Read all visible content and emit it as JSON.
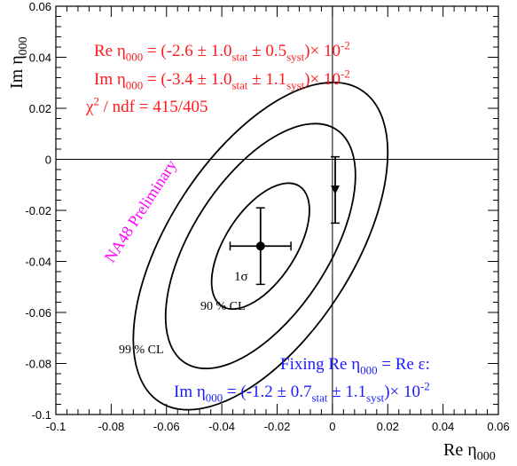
{
  "chart_data": {
    "type": "scatter",
    "xlim": [
      -0.1,
      0.06
    ],
    "ylim": [
      -0.1,
      0.06
    ],
    "x_ticks": [
      -0.1,
      -0.08,
      -0.06,
      -0.04,
      -0.02,
      0,
      0.02,
      0.04,
      0.06
    ],
    "y_ticks": [
      -0.1,
      -0.08,
      -0.06,
      -0.04,
      -0.02,
      0,
      0.02,
      0.04,
      0.06
    ],
    "x_tick_labels": [
      "-0.1",
      "-0.08",
      "-0.06",
      "-0.04",
      "-0.02",
      "0",
      "0.02",
      "0.04",
      "0.06"
    ],
    "y_tick_labels": [
      "-0.1",
      "-0.08",
      "-0.06",
      "-0.04",
      "-0.02",
      "0",
      "0.02",
      "0.04",
      "0.06"
    ],
    "xlabel": {
      "base": "Re  η",
      "sub": "000"
    },
    "ylabel": {
      "base": "Im  η",
      "sub": "000"
    },
    "grid": false,
    "zero_lines": {
      "x": 0,
      "y": 0
    },
    "central_value": {
      "x": -0.026,
      "y": -0.034,
      "xerr": 0.011,
      "yerr": 0.015
    },
    "fixed_point": {
      "x": 0.001,
      "y": -0.012,
      "err_low": 0.013,
      "err_high": 0.013
    },
    "contours": [
      {
        "label": "1σ",
        "cx": -0.026,
        "cy": -0.034,
        "rx": 0.0128,
        "ry": 0.028,
        "rotation_deg": -33
      },
      {
        "label": "90 % CL",
        "cx": -0.026,
        "cy": -0.034,
        "rx": 0.0247,
        "ry": 0.0545,
        "rotation_deg": -33
      },
      {
        "label": "99 % CL",
        "cx": -0.026,
        "cy": -0.034,
        "rx": 0.0333,
        "ry": 0.0728,
        "rotation_deg": -33
      }
    ],
    "annotations": {
      "result_re": {
        "color": "#ff1a1a",
        "parts": [
          {
            "t": "Re η"
          },
          {
            "t": "000",
            "s": "sub"
          },
          {
            "t": " = (-2.6 ± 1.0"
          },
          {
            "t": "stat",
            "s": "sub"
          },
          {
            "t": " ± 0.5"
          },
          {
            "t": "syst",
            "s": "sub"
          },
          {
            "t": ")× 10"
          },
          {
            "t": "-2",
            "s": "sup"
          }
        ]
      },
      "result_im": {
        "color": "#ff1a1a",
        "parts": [
          {
            "t": "Im η"
          },
          {
            "t": "000",
            "s": "sub"
          },
          {
            "t": " = (-3.4 ± 1.0"
          },
          {
            "t": "stat",
            "s": "sub"
          },
          {
            "t": " ± 1.1"
          },
          {
            "t": "syst",
            "s": "sub"
          },
          {
            "t": ")× 10"
          },
          {
            "t": "-2",
            "s": "sup"
          }
        ]
      },
      "chi2": {
        "color": "#ff1a1a",
        "parts": [
          {
            "t": "χ"
          },
          {
            "t": "2",
            "s": "sup"
          },
          {
            "t": " / ndf = 415/405"
          }
        ]
      },
      "preliminary": {
        "text": "NA48 Preliminary",
        "color": "#ff00ff"
      },
      "fixing_1": {
        "color": "#1a1aff",
        "parts": [
          {
            "t": "Fixing Re η"
          },
          {
            "t": "000",
            "s": "sub"
          },
          {
            "t": " = Re ε:"
          }
        ]
      },
      "fixing_2": {
        "color": "#1a1aff",
        "parts": [
          {
            "t": "Im η"
          },
          {
            "t": "000",
            "s": "sub"
          },
          {
            "t": " = (-1.2 ± 0.7"
          },
          {
            "t": "stat",
            "s": "sub"
          },
          {
            "t": " ± 1.1"
          },
          {
            "t": "syst",
            "s": "sub"
          },
          {
            "t": ")× 10"
          },
          {
            "t": "-2",
            "s": "sup"
          }
        ]
      }
    }
  }
}
